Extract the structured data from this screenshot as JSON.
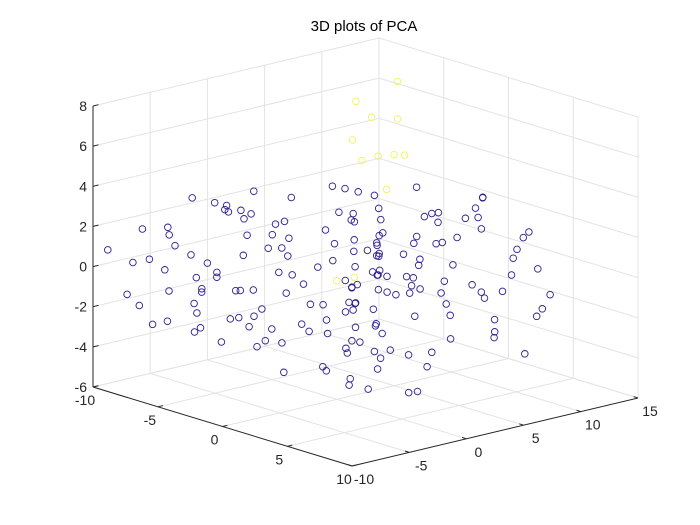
{
  "chart_data": {
    "type": "scatter3d",
    "title": "3D plots of PCA",
    "xlim": [
      -10,
      10
    ],
    "ylim": [
      -10,
      15
    ],
    "zlim": [
      -6,
      8
    ],
    "x_ticks": [
      10,
      5,
      0,
      -5,
      -10
    ],
    "y_ticks": [
      -10,
      -5,
      0,
      5,
      10,
      15
    ],
    "z_ticks": [
      8,
      6,
      4,
      2,
      0,
      -2,
      -4,
      -6
    ],
    "grid": true,
    "colors": {
      "main": "#2a1f8f",
      "highlight": "#f2f25a"
    },
    "series": [
      {
        "color_key": "main",
        "points": [
          [
            8.5,
            -6.5,
            2.9
          ],
          [
            9,
            -5.8,
            1.9
          ],
          [
            8.2,
            -4.9,
            2.4
          ],
          [
            7.8,
            -7.2,
            0.1
          ],
          [
            7.3,
            -4.3,
            -0.7
          ],
          [
            6.9,
            -6.9,
            -1.4
          ],
          [
            6.2,
            -3.2,
            -2.3
          ],
          [
            5.8,
            -5.4,
            -3.1
          ],
          [
            5.5,
            -2.6,
            0.9
          ],
          [
            4.8,
            -4.7,
            1.5
          ],
          [
            4.4,
            -1.8,
            -0.4
          ],
          [
            3.9,
            -3.1,
            -1.9
          ],
          [
            3.6,
            -0.8,
            -2.8
          ],
          [
            3.1,
            -2.2,
            0.5
          ],
          [
            2.9,
            0.2,
            1.7
          ],
          [
            2.4,
            -1.3,
            -0.9
          ],
          [
            2,
            1.1,
            -2.1
          ],
          [
            1.6,
            -0.3,
            2.3
          ],
          [
            1.1,
            2.5,
            0.3
          ],
          [
            0.7,
            0.8,
            -1.2
          ],
          [
            0.3,
            3.1,
            -2.6
          ],
          [
            -0.2,
            1.7,
            1.1
          ],
          [
            -0.6,
            4.2,
            -0.5
          ],
          [
            -1.1,
            2.3,
            -1.7
          ],
          [
            -1.4,
            5.1,
            0.7
          ],
          [
            -1.9,
            3.4,
            2.1
          ],
          [
            -2.3,
            6.2,
            -1.1
          ],
          [
            -2.8,
            4.8,
            -2.4
          ],
          [
            -3.2,
            7.1,
            0.2
          ],
          [
            -3.6,
            5.5,
            1.8
          ],
          [
            -4.1,
            8.3,
            -0.8
          ],
          [
            -4.5,
            6.4,
            -2.2
          ],
          [
            -4.9,
            9.2,
            1.3
          ],
          [
            -5.4,
            7.7,
            -1.5
          ],
          [
            -5.8,
            10.4,
            0.4
          ],
          [
            -6.2,
            8.8,
            -2.7
          ],
          [
            -6.7,
            11.6,
            -0.6
          ],
          [
            -7.1,
            9.9,
            1.6
          ],
          [
            -7.6,
            12.3,
            -1.9
          ],
          [
            -8.1,
            10.7,
            -0.2
          ],
          [
            8.1,
            -2.9,
            -1.8
          ],
          [
            7.4,
            -1.1,
            1.1
          ],
          [
            6.8,
            0.6,
            -2.4
          ],
          [
            6.1,
            2.2,
            0.2
          ],
          [
            5.3,
            3.9,
            -1.3
          ],
          [
            4.7,
            1.4,
            2.5
          ],
          [
            4.1,
            5.3,
            -2.9
          ],
          [
            3.4,
            3.3,
            0.9
          ],
          [
            2.7,
            6.5,
            -1.6
          ],
          [
            2.1,
            4.6,
            1.9
          ],
          [
            1.4,
            7.8,
            -0.9
          ],
          [
            0.8,
            5.9,
            -2.5
          ],
          [
            0.1,
            9.1,
            0.6
          ],
          [
            -0.5,
            7.1,
            -1.4
          ],
          [
            -1.2,
            10.2,
            1.2
          ],
          [
            -1.8,
            8.4,
            -2.2
          ],
          [
            -2.5,
            11.5,
            -0.3
          ],
          [
            -3.1,
            9.6,
            -1.8
          ],
          [
            -3.8,
            12.6,
            0.8
          ],
          [
            -4.4,
            10.8,
            -1.1
          ],
          [
            9.2,
            -8.4,
            -0.2
          ],
          [
            8.7,
            -9.1,
            1.3
          ],
          [
            8.1,
            -8.1,
            -2.6
          ],
          [
            7.5,
            -9.4,
            0.7
          ],
          [
            6.6,
            -8.7,
            -1.9
          ],
          [
            5.9,
            -9.6,
            2.2
          ],
          [
            5.1,
            -8.2,
            -0.5
          ],
          [
            4.3,
            -9.3,
            1.4
          ],
          [
            3.5,
            -8.6,
            -2.8
          ],
          [
            2.6,
            -9.5,
            0.3
          ],
          [
            1.8,
            -8.3,
            -1.6
          ],
          [
            0.9,
            -9.2,
            2.6
          ],
          [
            0.2,
            -8.8,
            -0.7
          ],
          [
            -0.7,
            -9.7,
            1.5
          ],
          [
            -1.5,
            -8.4,
            -2.3
          ],
          [
            -2.4,
            -9.1,
            0.1
          ],
          [
            -3.3,
            -8.5,
            -1.2
          ],
          [
            -4.2,
            -9.4,
            2.1
          ],
          [
            -5.1,
            -8.9,
            -0.4
          ],
          [
            -6,
            -9.6,
            1.1
          ],
          [
            -6.9,
            -8.3,
            -2.5
          ],
          [
            -7.8,
            -9,
            0.5
          ],
          [
            -8.6,
            -8.6,
            -1.3
          ],
          [
            -9.3,
            -9.5,
            0.9
          ],
          [
            -8.9,
            -7.2,
            -2.1
          ],
          [
            -8.2,
            -5.5,
            1.7
          ],
          [
            -7.5,
            -3.8,
            -0.9
          ],
          [
            -6.8,
            -2.1,
            2.4
          ],
          [
            -6.1,
            -0.4,
            -1.7
          ],
          [
            -5.4,
            1.3,
            0.3
          ],
          [
            -4.7,
            3,
            -2.6
          ],
          [
            -4,
            4.7,
            1.9
          ],
          [
            -3.3,
            6.4,
            -0.1
          ],
          [
            -2.6,
            8.1,
            -2.4
          ],
          [
            -1.9,
            9.8,
            1.4
          ],
          [
            -1.2,
            11.5,
            -1.1
          ],
          [
            -0.5,
            13.2,
            0.6
          ],
          [
            0.2,
            12.4,
            -2.3
          ],
          [
            0.9,
            11.1,
            2.2
          ],
          [
            1.6,
            13.6,
            -0.5
          ],
          [
            2.3,
            10.3,
            -1.9
          ],
          [
            3,
            12.9,
            0.9
          ],
          [
            3.7,
            9.6,
            -2.6
          ],
          [
            4.4,
            11.8,
            1.6
          ],
          [
            5.1,
            8.7,
            -0.8
          ],
          [
            5.8,
            10.9,
            -2.2
          ],
          [
            6.5,
            7.9,
            0.4
          ],
          [
            7.2,
            9.8,
            -1.4
          ],
          [
            7.9,
            6.8,
            2.1
          ],
          [
            8.6,
            8.9,
            -0.3
          ],
          [
            9.3,
            5.9,
            -2.7
          ],
          [
            8.8,
            7.6,
            1.2
          ],
          [
            8.3,
            4.4,
            -1.6
          ],
          [
            7.7,
            3.1,
            0.8
          ],
          [
            7.1,
            5.7,
            -2.3
          ],
          [
            -9,
            1.8,
            1.4
          ],
          [
            -8.4,
            3.5,
            -0.6
          ],
          [
            -7.9,
            0.5,
            -2.2
          ],
          [
            -7.3,
            2.9,
            0.9
          ],
          [
            -6.6,
            5.8,
            -1.5
          ],
          [
            -6,
            7.5,
            2.3
          ],
          [
            -5.3,
            9.7,
            -0.2
          ],
          [
            -4.7,
            12,
            -2.5
          ],
          [
            -4,
            13.4,
            0.7
          ],
          [
            -3.4,
            11.1,
            -1.2
          ],
          [
            -9.4,
            -4.4,
            -0.8
          ],
          [
            -9.1,
            -6.7,
            1.6
          ],
          [
            -8.7,
            -2.8,
            2.7
          ],
          [
            -8.3,
            -1.1,
            -1.4
          ],
          [
            -7.7,
            -6.1,
            -2.8
          ],
          [
            -7.2,
            -4.6,
            0.4
          ],
          [
            -6.5,
            -7.3,
            1.9
          ],
          [
            -5.9,
            -5.8,
            -1.6
          ],
          [
            -5.2,
            -3.6,
            2.8
          ],
          [
            -4.6,
            -6.6,
            -0.5
          ],
          [
            -3.9,
            -4.9,
            -2.1
          ],
          [
            -3.2,
            -7.7,
            1.2
          ],
          [
            -2.6,
            -5.9,
            -0.3
          ],
          [
            -1.9,
            -3.5,
            2.3
          ],
          [
            -1.3,
            -6.2,
            -1.8
          ],
          [
            -0.6,
            -4.4,
            0.8
          ],
          [
            0.1,
            -7.1,
            -2.4
          ],
          [
            0.8,
            -5.2,
            2
          ],
          [
            1.5,
            -2.9,
            -0.6
          ],
          [
            2.2,
            -6.4,
            1.5
          ],
          [
            6.4,
            -7.6,
            3.2
          ],
          [
            5.2,
            -6.1,
            3.6
          ],
          [
            3.8,
            -5.3,
            3.9
          ],
          [
            2.3,
            -6.8,
            3.4
          ],
          [
            0.9,
            -5.6,
            3.8
          ],
          [
            -0.4,
            -7.4,
            3.1
          ],
          [
            -1.7,
            -6.2,
            3.5
          ],
          [
            -3,
            -4.1,
            3.2
          ],
          [
            -4.4,
            -5.7,
            3.7
          ],
          [
            -5.6,
            -3.3,
            3
          ],
          [
            7.6,
            1.9,
            3.3
          ],
          [
            6.3,
            4.1,
            3.7
          ],
          [
            4.9,
            6.8,
            3.1
          ],
          [
            3.4,
            8.9,
            3.5
          ],
          [
            1.9,
            10.6,
            3
          ],
          [
            0.5,
            6.4,
            3.8
          ],
          [
            -0.9,
            4.3,
            3.4
          ],
          [
            -2.2,
            2.1,
            3.9
          ],
          [
            -3.7,
            0.2,
            3.3
          ],
          [
            -5,
            -1.6,
            3.6
          ],
          [
            8.9,
            -3.8,
            -3.4
          ],
          [
            7.9,
            -1.9,
            -3.8
          ],
          [
            6.7,
            0.3,
            -3.1
          ],
          [
            5.6,
            -3.6,
            -3.9
          ],
          [
            4.2,
            -1.2,
            -3.5
          ],
          [
            2.8,
            1.5,
            -3.2
          ],
          [
            1.3,
            -2.4,
            -4
          ],
          [
            -0.1,
            0.9,
            -3.6
          ],
          [
            -1.6,
            -3,
            -3.1
          ],
          [
            -3.1,
            2.7,
            -3.7
          ],
          [
            -4.5,
            -0.6,
            -3.3
          ],
          [
            -5.9,
            3.6,
            -3.9
          ],
          [
            -7.2,
            0.9,
            -3.4
          ],
          [
            -8.5,
            -2.3,
            -3.8
          ],
          [
            -6.4,
            -5.2,
            -3.2
          ]
        ]
      },
      {
        "color_key": "highlight",
        "points": [
          [
            -7.2,
            9.8,
            6.1
          ],
          [
            -6.4,
            8.6,
            4.5
          ],
          [
            -5.3,
            11.3,
            5.4
          ],
          [
            -8.1,
            12.2,
            4.8
          ],
          [
            -4.6,
            10.2,
            3.9
          ],
          [
            -6.9,
            13.1,
            6.7
          ],
          [
            -3.8,
            7.9,
            4.3
          ],
          [
            -7.7,
            10.9,
            2.9
          ],
          [
            -5.9,
            12.6,
            3.3
          ],
          [
            -4.2,
            9.1,
            2.4
          ],
          [
            -0.5,
            2.1,
            -0.3
          ],
          [
            1.4,
            -1.6,
            0.4
          ]
        ]
      }
    ]
  }
}
